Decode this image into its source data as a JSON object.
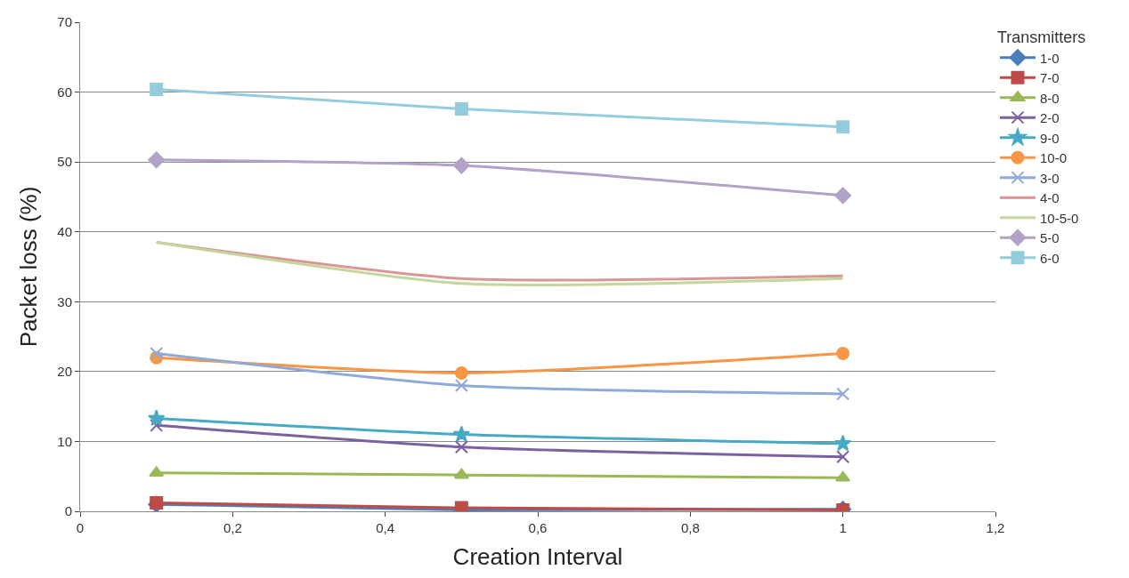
{
  "chart_data": {
    "type": "line",
    "xlabel": "Creation Interval",
    "ylabel": "Packet loss (%)",
    "legend_title": "Transmitters",
    "legend": "right",
    "grid": "y",
    "line_style": "solid",
    "x": [
      0.1,
      0.5,
      1
    ],
    "xlim": [
      0,
      1.2
    ],
    "xticks": [
      0,
      {
        "value": 0.2,
        "label": "0,2"
      },
      {
        "value": 0.4,
        "label": "0,4"
      },
      {
        "value": 0.6,
        "label": "0,6"
      },
      {
        "value": 0.8,
        "label": "0,8"
      },
      1,
      {
        "value": 1.2,
        "label": "1,2"
      }
    ],
    "ylim": [
      0,
      70
    ],
    "yticks": [
      0,
      10,
      20,
      30,
      40,
      50,
      60,
      70
    ],
    "series": [
      {
        "name": "1-0",
        "color": "#4a7ebb",
        "marker": "diamond",
        "values": [
          1.0,
          0.2,
          0.3
        ]
      },
      {
        "name": "7-0",
        "color": "#be4b48",
        "marker": "square",
        "values": [
          1.2,
          0.5,
          0.2
        ]
      },
      {
        "name": "8-0",
        "color": "#98b954",
        "marker": "triangle",
        "values": [
          5.5,
          5.2,
          4.8
        ]
      },
      {
        "name": "2-0",
        "color": "#7d60a0",
        "marker": "cross",
        "values": [
          12.3,
          9.2,
          7.8
        ]
      },
      {
        "name": "9-0",
        "color": "#46aac5",
        "marker": "star",
        "values": [
          13.3,
          11.0,
          9.7
        ]
      },
      {
        "name": "10-0",
        "color": "#f79646",
        "marker": "circle",
        "values": [
          22.0,
          19.8,
          22.6
        ]
      },
      {
        "name": "3-0",
        "color": "#8fa9d8",
        "marker": "cross",
        "values": [
          22.6,
          18.0,
          16.8
        ]
      },
      {
        "name": "4-0",
        "color": "#d99694",
        "marker": "none",
        "values": [
          38.5,
          33.3,
          33.7
        ]
      },
      {
        "name": "10-5-0",
        "color": "#c3d69b",
        "marker": "none",
        "values": [
          38.5,
          32.6,
          33.3
        ]
      },
      {
        "name": "5-0",
        "color": "#b3a2c7",
        "marker": "diamond",
        "values": [
          50.3,
          49.5,
          45.2
        ]
      },
      {
        "name": "6-0",
        "color": "#93cddd",
        "marker": "square",
        "values": [
          60.4,
          57.6,
          55.0
        ]
      }
    ]
  }
}
